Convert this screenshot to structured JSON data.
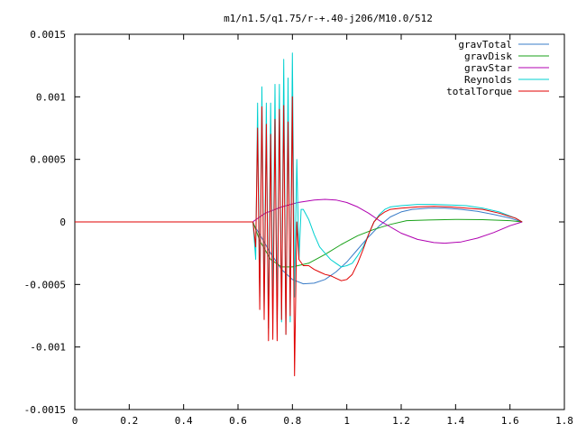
{
  "chart_data": {
    "type": "line",
    "title": "m1/n1.5/q1.75/r-+.40-j206/M10.0/512",
    "xlabel": "",
    "ylabel": "",
    "xlim": [
      0,
      1.8
    ],
    "ylim": [
      -0.0015,
      0.0015
    ],
    "x_ticks": [
      0,
      0.2,
      0.4,
      0.6,
      0.8,
      1,
      1.2,
      1.4,
      1.6,
      1.8
    ],
    "x_tick_labels": [
      "0",
      "0.2",
      "0.4",
      "0.6",
      "0.8",
      "1",
      "1.2",
      "1.4",
      "1.6",
      "1.8"
    ],
    "y_ticks": [
      -0.0015,
      -0.001,
      -0.0005,
      0,
      0.0005,
      0.001,
      0.0015
    ],
    "y_tick_labels": [
      "-0.0015",
      "-0.001",
      "-0.0005",
      "0",
      "0.0005",
      "0.001",
      "0.0015"
    ],
    "grid": false,
    "legend_position": "top-right",
    "series": [
      {
        "name": "gravTotal",
        "color": "#3a7cc8",
        "x": [
          0,
          0.655,
          0.66,
          0.68,
          0.72,
          0.76,
          0.8,
          0.84,
          0.88,
          0.92,
          0.96,
          1.0,
          1.04,
          1.08,
          1.12,
          1.16,
          1.2,
          1.24,
          1.3,
          1.36,
          1.42,
          1.48,
          1.54,
          1.6,
          1.645
        ],
        "y": [
          0,
          0,
          -3e-05,
          -0.0001,
          -0.00025,
          -0.00038,
          -0.00046,
          -0.000495,
          -0.00049,
          -0.00046,
          -0.0004,
          -0.00032,
          -0.00022,
          -0.00012,
          -3e-05,
          4e-05,
          8e-05,
          0.0001,
          0.00011,
          0.00011,
          0.0001,
          8.5e-05,
          6e-05,
          3e-05,
          0
        ]
      },
      {
        "name": "gravDisk",
        "color": "#1aa21a",
        "x": [
          0,
          0.655,
          0.66,
          0.68,
          0.72,
          0.76,
          0.8,
          0.86,
          0.92,
          0.98,
          1.04,
          1.1,
          1.16,
          1.22,
          1.3,
          1.4,
          1.5,
          1.6,
          1.645
        ],
        "y": [
          0,
          0,
          -3e-05,
          -0.00015,
          -0.0003,
          -0.00036,
          -0.00036,
          -0.00033,
          -0.00026,
          -0.00018,
          -0.00011,
          -6e-05,
          -2e-05,
          1e-05,
          1.5e-05,
          2e-05,
          1.8e-05,
          1e-05,
          0
        ]
      },
      {
        "name": "gravStar",
        "color": "#b000b0",
        "x": [
          0,
          0.655,
          0.66,
          0.7,
          0.76,
          0.82,
          0.88,
          0.92,
          0.96,
          1.0,
          1.04,
          1.08,
          1.12,
          1.16,
          1.2,
          1.26,
          1.32,
          1.36,
          1.42,
          1.48,
          1.54,
          1.6,
          1.645
        ],
        "y": [
          0,
          0,
          1e-05,
          7e-05,
          0.00012,
          0.000155,
          0.000175,
          0.00018,
          0.000175,
          0.000155,
          0.00012,
          7e-05,
          1e-05,
          -4e-05,
          -9e-05,
          -0.00014,
          -0.000165,
          -0.00017,
          -0.00016,
          -0.00013,
          -8.5e-05,
          -3e-05,
          0
        ]
      },
      {
        "name": "Reynolds",
        "color": "#00d0d0",
        "x": [
          0,
          0.655,
          0.665,
          0.672,
          0.68,
          0.688,
          0.696,
          0.704,
          0.712,
          0.72,
          0.728,
          0.736,
          0.744,
          0.752,
          0.76,
          0.768,
          0.776,
          0.784,
          0.792,
          0.8,
          0.808,
          0.816,
          0.824,
          0.832,
          0.84,
          0.86,
          0.88,
          0.9,
          0.92,
          0.94,
          0.96,
          0.98,
          1.0,
          1.02,
          1.04,
          1.06,
          1.08,
          1.1,
          1.12,
          1.14,
          1.16,
          1.2,
          1.26,
          1.32,
          1.38,
          1.44,
          1.5,
          1.56,
          1.62,
          1.645
        ],
        "y": [
          0,
          0,
          -0.0003,
          0.00095,
          -0.0006,
          0.00108,
          -0.0007,
          0.00095,
          -0.00085,
          0.00095,
          -0.0007,
          0.0011,
          -0.0008,
          0.0011,
          -0.0008,
          0.0013,
          -0.0009,
          0.00115,
          -0.0008,
          0.00135,
          -0.0006,
          0.0005,
          -0.0003,
          0.0001,
          0.0001,
          2e-05,
          -0.0001,
          -0.0002,
          -0.00025,
          -0.0003,
          -0.00033,
          -0.00036,
          -0.00035,
          -0.00033,
          -0.00027,
          -0.0002,
          -0.0001,
          0,
          6e-05,
          0.0001,
          0.00012,
          0.00013,
          0.00014,
          0.00014,
          0.000135,
          0.00013,
          0.00011,
          8e-05,
          3e-05,
          0
        ]
      },
      {
        "name": "totalTorque",
        "color": "#e00000",
        "x": [
          0,
          0.655,
          0.665,
          0.672,
          0.68,
          0.688,
          0.696,
          0.704,
          0.712,
          0.72,
          0.728,
          0.736,
          0.744,
          0.752,
          0.76,
          0.768,
          0.776,
          0.784,
          0.792,
          0.8,
          0.808,
          0.816,
          0.824,
          0.84,
          0.86,
          0.88,
          0.9,
          0.92,
          0.94,
          0.96,
          0.98,
          1.0,
          1.02,
          1.04,
          1.06,
          1.08,
          1.1,
          1.12,
          1.14,
          1.16,
          1.2,
          1.26,
          1.32,
          1.38,
          1.44,
          1.5,
          1.56,
          1.62,
          1.645
        ],
        "y": [
          0,
          0,
          -0.0002,
          0.00075,
          -0.0007,
          0.00092,
          -0.00078,
          0.00078,
          -0.00095,
          0.0007,
          -0.00094,
          0.00082,
          -0.00095,
          0.0009,
          -0.00078,
          0.00093,
          -0.0009,
          0.0008,
          -0.00075,
          0.001,
          -0.00123,
          0.0,
          -0.0003,
          -0.00035,
          -0.00035,
          -0.00038,
          -0.0004,
          -0.00042,
          -0.00043,
          -0.00045,
          -0.00047,
          -0.00046,
          -0.00042,
          -0.00033,
          -0.00022,
          -0.0001,
          0.0,
          5e-05,
          8e-05,
          0.0001,
          0.00011,
          0.00012,
          0.000125,
          0.00012,
          0.00011,
          0.0001,
          7e-05,
          3e-05,
          0
        ]
      }
    ]
  }
}
